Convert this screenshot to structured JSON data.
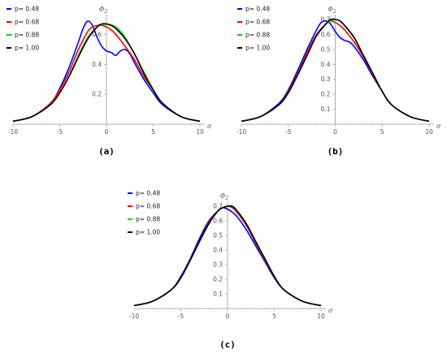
{
  "chart_data": [
    {
      "type": "line",
      "caption": "(a)",
      "xlabel": "σ",
      "ylabel": "Φ2",
      "xlim": [
        -10,
        10
      ],
      "ylim": [
        0,
        0.7
      ],
      "xticks": [
        "-10",
        "-5",
        "0",
        "5",
        "10"
      ],
      "yticks": [
        "0.2",
        "0.4",
        "0.6"
      ],
      "legend_placement": "top-left",
      "series": [
        {
          "name": "p= 0.48",
          "color": "#0000ff",
          "x": [
            -10,
            -8,
            -6,
            -5,
            -4,
            -3,
            -2.5,
            -2,
            -1.5,
            -1,
            -0.5,
            0,
            0.5,
            1,
            1.5,
            2,
            2.5,
            3,
            4,
            5,
            6,
            8,
            10
          ],
          "y": [
            0.02,
            0.05,
            0.14,
            0.24,
            0.38,
            0.55,
            0.64,
            0.69,
            0.66,
            0.58,
            0.52,
            0.49,
            0.48,
            0.46,
            0.49,
            0.5,
            0.47,
            0.41,
            0.3,
            0.21,
            0.13,
            0.05,
            0.02
          ]
        },
        {
          "name": "p= 0.68",
          "color": "#ff0000",
          "x": [
            -10,
            -8,
            -6,
            -5,
            -4,
            -3,
            -2,
            -1.5,
            -1,
            -0.5,
            0,
            0.5,
            1,
            2,
            3,
            4,
            5,
            6,
            8,
            10
          ],
          "y": [
            0.02,
            0.05,
            0.14,
            0.23,
            0.35,
            0.5,
            0.62,
            0.65,
            0.66,
            0.66,
            0.65,
            0.63,
            0.6,
            0.52,
            0.43,
            0.32,
            0.23,
            0.14,
            0.05,
            0.02
          ]
        },
        {
          "name": "p= 0.88",
          "color": "#00dd00",
          "x": [
            -10,
            -8,
            -6,
            -5,
            -4,
            -3,
            -2,
            -1,
            -0.5,
            0,
            0.5,
            1,
            1.5,
            2,
            3,
            4,
            5,
            6,
            8,
            10
          ],
          "y": [
            0.02,
            0.05,
            0.13,
            0.21,
            0.32,
            0.46,
            0.58,
            0.65,
            0.665,
            0.67,
            0.665,
            0.65,
            0.62,
            0.58,
            0.47,
            0.35,
            0.23,
            0.14,
            0.05,
            0.02
          ]
        },
        {
          "name": "p= 1.00",
          "color": "#000000",
          "x": [
            -10,
            -8,
            -6,
            -5,
            -4,
            -3,
            -2,
            -1,
            -0.5,
            0,
            0.5,
            1,
            2,
            3,
            4,
            5,
            6,
            8,
            10
          ],
          "y": [
            0.02,
            0.05,
            0.13,
            0.21,
            0.32,
            0.45,
            0.57,
            0.65,
            0.67,
            0.67,
            0.66,
            0.64,
            0.57,
            0.47,
            0.34,
            0.23,
            0.14,
            0.05,
            0.02
          ]
        }
      ]
    },
    {
      "type": "line",
      "caption": "(b)",
      "xlabel": "σ",
      "ylabel": "Φ2",
      "xlim": [
        -10,
        10
      ],
      "ylim": [
        0,
        0.7
      ],
      "xticks": [
        "-10",
        "-5",
        "0",
        "5",
        "10"
      ],
      "yticks": [
        "0.1",
        "0.2",
        "0.3",
        "0.4",
        "0.5",
        "0.6",
        "0.7"
      ],
      "legend_placement": "top-left",
      "series": [
        {
          "name": "p= 0.48",
          "color": "#0000ff",
          "x": [
            -10,
            -8,
            -6,
            -5,
            -4,
            -3,
            -2,
            -1.5,
            -1,
            -0.5,
            0,
            0.5,
            1,
            1.5,
            2,
            3,
            4,
            5,
            6,
            8,
            10
          ],
          "y": [
            0.02,
            0.05,
            0.14,
            0.23,
            0.36,
            0.5,
            0.63,
            0.68,
            0.69,
            0.67,
            0.62,
            0.58,
            0.56,
            0.55,
            0.52,
            0.43,
            0.32,
            0.22,
            0.13,
            0.05,
            0.02
          ]
        },
        {
          "name": "p= 0.68",
          "color": "#ff0000",
          "x": [
            -10,
            -8,
            -6,
            -5,
            -4,
            -3,
            -2,
            -1,
            -0.5,
            0,
            0.5,
            1,
            2,
            3,
            4,
            5,
            6,
            8,
            10
          ],
          "y": [
            0.02,
            0.05,
            0.13,
            0.22,
            0.34,
            0.48,
            0.6,
            0.67,
            0.69,
            0.68,
            0.66,
            0.63,
            0.55,
            0.45,
            0.33,
            0.22,
            0.13,
            0.05,
            0.02
          ]
        },
        {
          "name": "p= 0.88",
          "color": "#00dd00",
          "x": [
            -10,
            -8,
            -6,
            -5,
            -4,
            -3,
            -2,
            -1,
            -0.5,
            0,
            0.5,
            1,
            2,
            3,
            4,
            5,
            6,
            8,
            10
          ],
          "y": [
            0.02,
            0.05,
            0.13,
            0.21,
            0.33,
            0.46,
            0.59,
            0.67,
            0.69,
            0.7,
            0.69,
            0.66,
            0.58,
            0.46,
            0.34,
            0.22,
            0.13,
            0.05,
            0.02
          ]
        },
        {
          "name": "p= 1.00",
          "color": "#000000",
          "x": [
            -10,
            -8,
            -6,
            -5,
            -4,
            -3,
            -2,
            -1,
            -0.5,
            0,
            0.5,
            1,
            2,
            3,
            4,
            5,
            6,
            8,
            10
          ],
          "y": [
            0.02,
            0.05,
            0.13,
            0.21,
            0.33,
            0.46,
            0.59,
            0.67,
            0.7,
            0.7,
            0.69,
            0.66,
            0.58,
            0.46,
            0.34,
            0.22,
            0.13,
            0.05,
            0.02
          ]
        }
      ]
    },
    {
      "type": "line",
      "caption": "(c)",
      "xlabel": "σ",
      "ylabel": "Φ2",
      "xlim": [
        -10,
        10
      ],
      "ylim": [
        0,
        0.7
      ],
      "xticks": [
        "-10",
        "-5",
        "0",
        "5",
        "10"
      ],
      "yticks": [
        "0.1",
        "0.2",
        "0.3",
        "0.4",
        "0.5",
        "0.6",
        "0.7"
      ],
      "legend_placement": "top-left",
      "series": [
        {
          "name": "p= 0.48",
          "color": "#0000ff",
          "x": [
            -10,
            -8,
            -6,
            -5,
            -4,
            -3,
            -2,
            -1,
            -0.5,
            0,
            0.5,
            1,
            2,
            3,
            4,
            5,
            6,
            8,
            10
          ],
          "y": [
            0.02,
            0.05,
            0.13,
            0.22,
            0.34,
            0.48,
            0.6,
            0.67,
            0.69,
            0.68,
            0.66,
            0.63,
            0.54,
            0.43,
            0.32,
            0.21,
            0.13,
            0.05,
            0.02
          ]
        },
        {
          "name": "p= 0.68",
          "color": "#ff0000",
          "x": [
            -10,
            -8,
            -6,
            -5,
            -4,
            -3,
            -2,
            -1,
            -0.5,
            0,
            0.5,
            1,
            2,
            3,
            4,
            5,
            6,
            8,
            10
          ],
          "y": [
            0.02,
            0.05,
            0.13,
            0.21,
            0.33,
            0.46,
            0.59,
            0.67,
            0.69,
            0.7,
            0.69,
            0.66,
            0.57,
            0.45,
            0.33,
            0.22,
            0.13,
            0.05,
            0.02
          ]
        },
        {
          "name": "p= 0.88",
          "color": "#00dd00",
          "x": [
            -10,
            -8,
            -6,
            -5,
            -4,
            -3,
            -2,
            -1,
            -0.5,
            0,
            0.5,
            1,
            2,
            3,
            4,
            5,
            6,
            8,
            10
          ],
          "y": [
            0.02,
            0.05,
            0.13,
            0.21,
            0.33,
            0.46,
            0.58,
            0.67,
            0.69,
            0.7,
            0.7,
            0.67,
            0.58,
            0.46,
            0.34,
            0.22,
            0.13,
            0.05,
            0.02
          ]
        },
        {
          "name": "p= 1.00",
          "color": "#000000",
          "x": [
            -10,
            -8,
            -6,
            -5,
            -4,
            -3,
            -2,
            -1,
            -0.5,
            0,
            0.5,
            1,
            2,
            3,
            4,
            5,
            6,
            8,
            10
          ],
          "y": [
            0.02,
            0.05,
            0.13,
            0.21,
            0.33,
            0.46,
            0.58,
            0.67,
            0.69,
            0.7,
            0.7,
            0.67,
            0.58,
            0.46,
            0.34,
            0.22,
            0.13,
            0.05,
            0.02
          ]
        }
      ]
    }
  ]
}
